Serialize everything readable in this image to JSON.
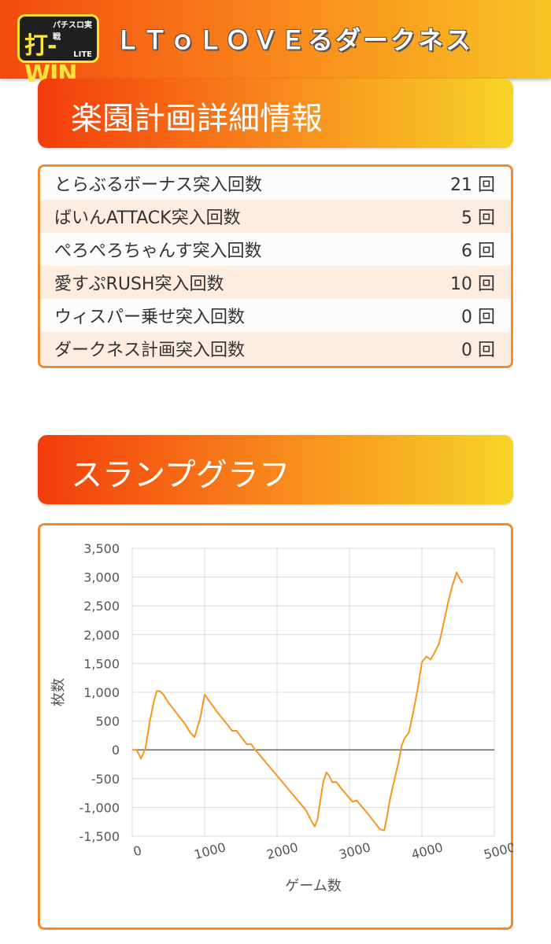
{
  "header": {
    "logo_sub": "パチスロ実戦",
    "logo_main": "打-WIN",
    "logo_lite": "LITE",
    "title": "ＬＴｏＬＯＶＥるダークネス"
  },
  "sections": {
    "detail_title": "楽園計画詳細情報",
    "graph_title": "スランプグラフ"
  },
  "stats": [
    {
      "label": "とらぶるボーナス突入回数",
      "value": "21 回"
    },
    {
      "label": "ばいんATTACK突入回数",
      "value": "5 回"
    },
    {
      "label": "ぺろぺろちゃんす突入回数",
      "value": "6 回"
    },
    {
      "label": "愛すぷRUSH突入回数",
      "value": "10 回"
    },
    {
      "label": "ウィスパー乗せ突入回数",
      "value": "0 回"
    },
    {
      "label": "ダークネス計画突入回数",
      "value": "0 回"
    }
  ],
  "colors": {
    "accent": "#f48a2b",
    "line": "#f7961e"
  },
  "chart_data": {
    "type": "line",
    "title": "",
    "xlabel": "ゲーム数",
    "ylabel": "枚数",
    "xlim": [
      0,
      5000
    ],
    "ylim": [
      -1500,
      3500
    ],
    "xticks": [
      0,
      1000,
      2000,
      3000,
      4000,
      5000
    ],
    "xtick_labels": [
      "0",
      "1000",
      "2000",
      "3000",
      "4000",
      "5000"
    ],
    "yticks": [
      -1500,
      -1000,
      -500,
      0,
      500,
      1000,
      1500,
      2000,
      2500,
      3000,
      3500
    ],
    "ytick_labels": [
      "-1,500",
      "-1,000",
      "-500",
      "0",
      "500",
      "1,000",
      "1,500",
      "2,000",
      "2,500",
      "3,000",
      "3,500"
    ],
    "grid": true,
    "series": [
      {
        "x": [
          0,
          60,
          120,
          180,
          240,
          300,
          340,
          380,
          430,
          500,
          580,
          660,
          740,
          800,
          860,
          940,
          1000,
          1080,
          1160,
          1240,
          1320,
          1380,
          1440,
          1520,
          1580,
          1640,
          1700,
          1800,
          1900,
          2000,
          2100,
          2200,
          2300,
          2400,
          2480,
          2520,
          2560,
          2600,
          2640,
          2680,
          2720,
          2760,
          2820,
          2880,
          2960,
          3040,
          3100,
          3180,
          3260,
          3340,
          3420,
          3480,
          3520,
          3560,
          3620,
          3680,
          3720,
          3760,
          3820,
          3880,
          3940,
          4000,
          4060,
          4120,
          4180,
          4240,
          4300,
          4360,
          4420,
          4480,
          4520,
          4560
        ],
        "y": [
          0,
          0,
          -150,
          10,
          480,
          850,
          1020,
          1020,
          960,
          820,
          690,
          560,
          430,
          300,
          220,
          560,
          960,
          820,
          680,
          550,
          430,
          330,
          330,
          200,
          100,
          100,
          0,
          -150,
          -300,
          -450,
          -600,
          -750,
          -900,
          -1050,
          -1250,
          -1330,
          -1200,
          -850,
          -550,
          -390,
          -450,
          -560,
          -560,
          -660,
          -780,
          -900,
          -880,
          -1000,
          -1120,
          -1250,
          -1380,
          -1400,
          -1150,
          -850,
          -520,
          -200,
          70,
          200,
          300,
          650,
          1050,
          1520,
          1620,
          1570,
          1700,
          1860,
          2200,
          2550,
          2850,
          3080,
          2980,
          2900
        ]
      }
    ]
  }
}
